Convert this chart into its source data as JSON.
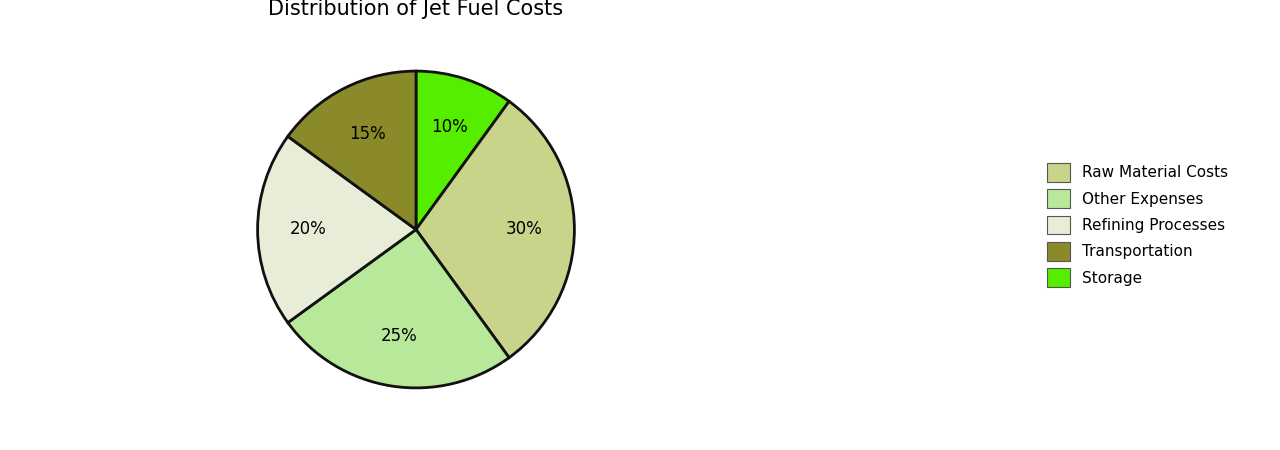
{
  "title": "Distribution of Jet Fuel Costs",
  "labels": [
    "Raw Material Costs",
    "Other Expenses",
    "Refining Processes",
    "Transportation",
    "Storage"
  ],
  "sizes": [
    30,
    25,
    20,
    15,
    10
  ],
  "colors": [
    "#c8d48a",
    "#b8e89a",
    "#e8edd8",
    "#8b8a2a",
    "#55ee00"
  ],
  "startangle": 72,
  "title_fontsize": 15,
  "legend_fontsize": 11,
  "pct_fontsize": 12,
  "wedge_linewidth": 2.0,
  "wedge_edgecolor": "#111111"
}
